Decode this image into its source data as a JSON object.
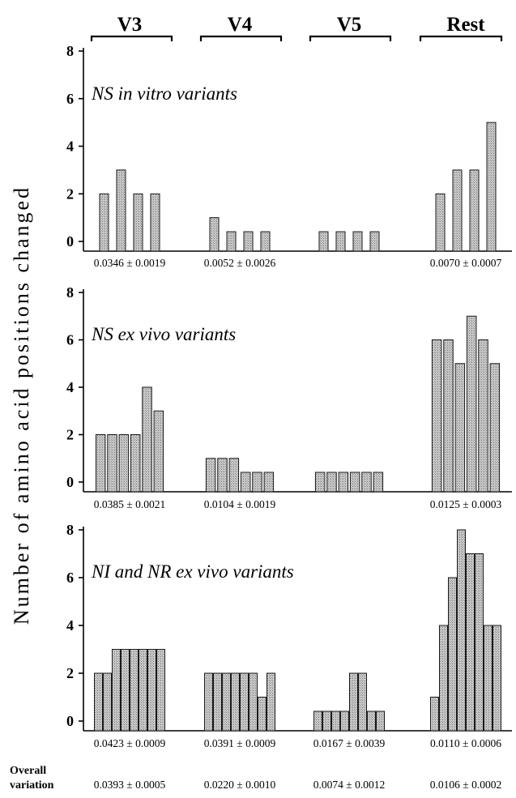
{
  "chart_data": {
    "type": "bar",
    "ylabel": "Number of amino acid positions changed",
    "regions": [
      "V3",
      "V4",
      "V5",
      "Rest"
    ],
    "ylim": [
      0,
      8
    ],
    "yticks": [
      "0",
      "2",
      "4",
      "6",
      "8"
    ],
    "panels": [
      {
        "title": "NS in vitro variants",
        "groups": [
          {
            "region": "V3",
            "values": [
              2,
              3,
              2,
              2
            ],
            "stat": "0.0346 ± 0.0019"
          },
          {
            "region": "V4",
            "values": [
              1,
              0,
              0,
              0
            ],
            "stat": "0.0052 ± 0.0026"
          },
          {
            "region": "V5",
            "values": [
              0,
              0,
              0,
              0
            ],
            "stat": ""
          },
          {
            "region": "Rest",
            "values": [
              2,
              3,
              3,
              5
            ],
            "stat": "0.0070 ± 0.0007"
          }
        ]
      },
      {
        "title": "NS ex vivo variants",
        "groups": [
          {
            "region": "V3",
            "values": [
              2,
              2,
              2,
              2,
              4,
              3
            ],
            "stat": "0.0385 ± 0.0021"
          },
          {
            "region": "V4",
            "values": [
              1,
              1,
              1,
              0,
              0,
              0
            ],
            "stat": "0.0104 ± 0.0019"
          },
          {
            "region": "V5",
            "values": [
              0,
              0,
              0,
              0,
              0,
              0
            ],
            "stat": ""
          },
          {
            "region": "Rest",
            "values": [
              6,
              6,
              5,
              7,
              6,
              5
            ],
            "stat": "0.0125 ± 0.0003"
          }
        ]
      },
      {
        "title": "NI and NR ex vivo variants",
        "groups": [
          {
            "region": "V3",
            "values": [
              2,
              2,
              3,
              3,
              3,
              3,
              3,
              3
            ],
            "stat": "0.0423 ± 0.0009"
          },
          {
            "region": "V4",
            "values": [
              2,
              2,
              2,
              2,
              2,
              2,
              1,
              2
            ],
            "stat": "0.0391 ± 0.0009"
          },
          {
            "region": "V5",
            "values": [
              0,
              0,
              0,
              0,
              2,
              2,
              0,
              0
            ],
            "stat": "0.0167 ± 0.0039"
          },
          {
            "region": "Rest",
            "values": [
              1,
              4,
              6,
              8,
              7,
              7,
              4,
              4
            ],
            "stat": "0.0110 ± 0.0006"
          }
        ]
      }
    ],
    "overall": {
      "label_line1": "Overall",
      "label_line2": "variation",
      "values": [
        "0.0393 ± 0.0005",
        "0.0220 ± 0.0010",
        "0.0074 ± 0.0012",
        "0.0106 ± 0.0002"
      ]
    },
    "colors": {
      "bar_fill": "#bdbdbd",
      "bar_stroke": "#1a1a1a",
      "axis": "#000000"
    }
  }
}
